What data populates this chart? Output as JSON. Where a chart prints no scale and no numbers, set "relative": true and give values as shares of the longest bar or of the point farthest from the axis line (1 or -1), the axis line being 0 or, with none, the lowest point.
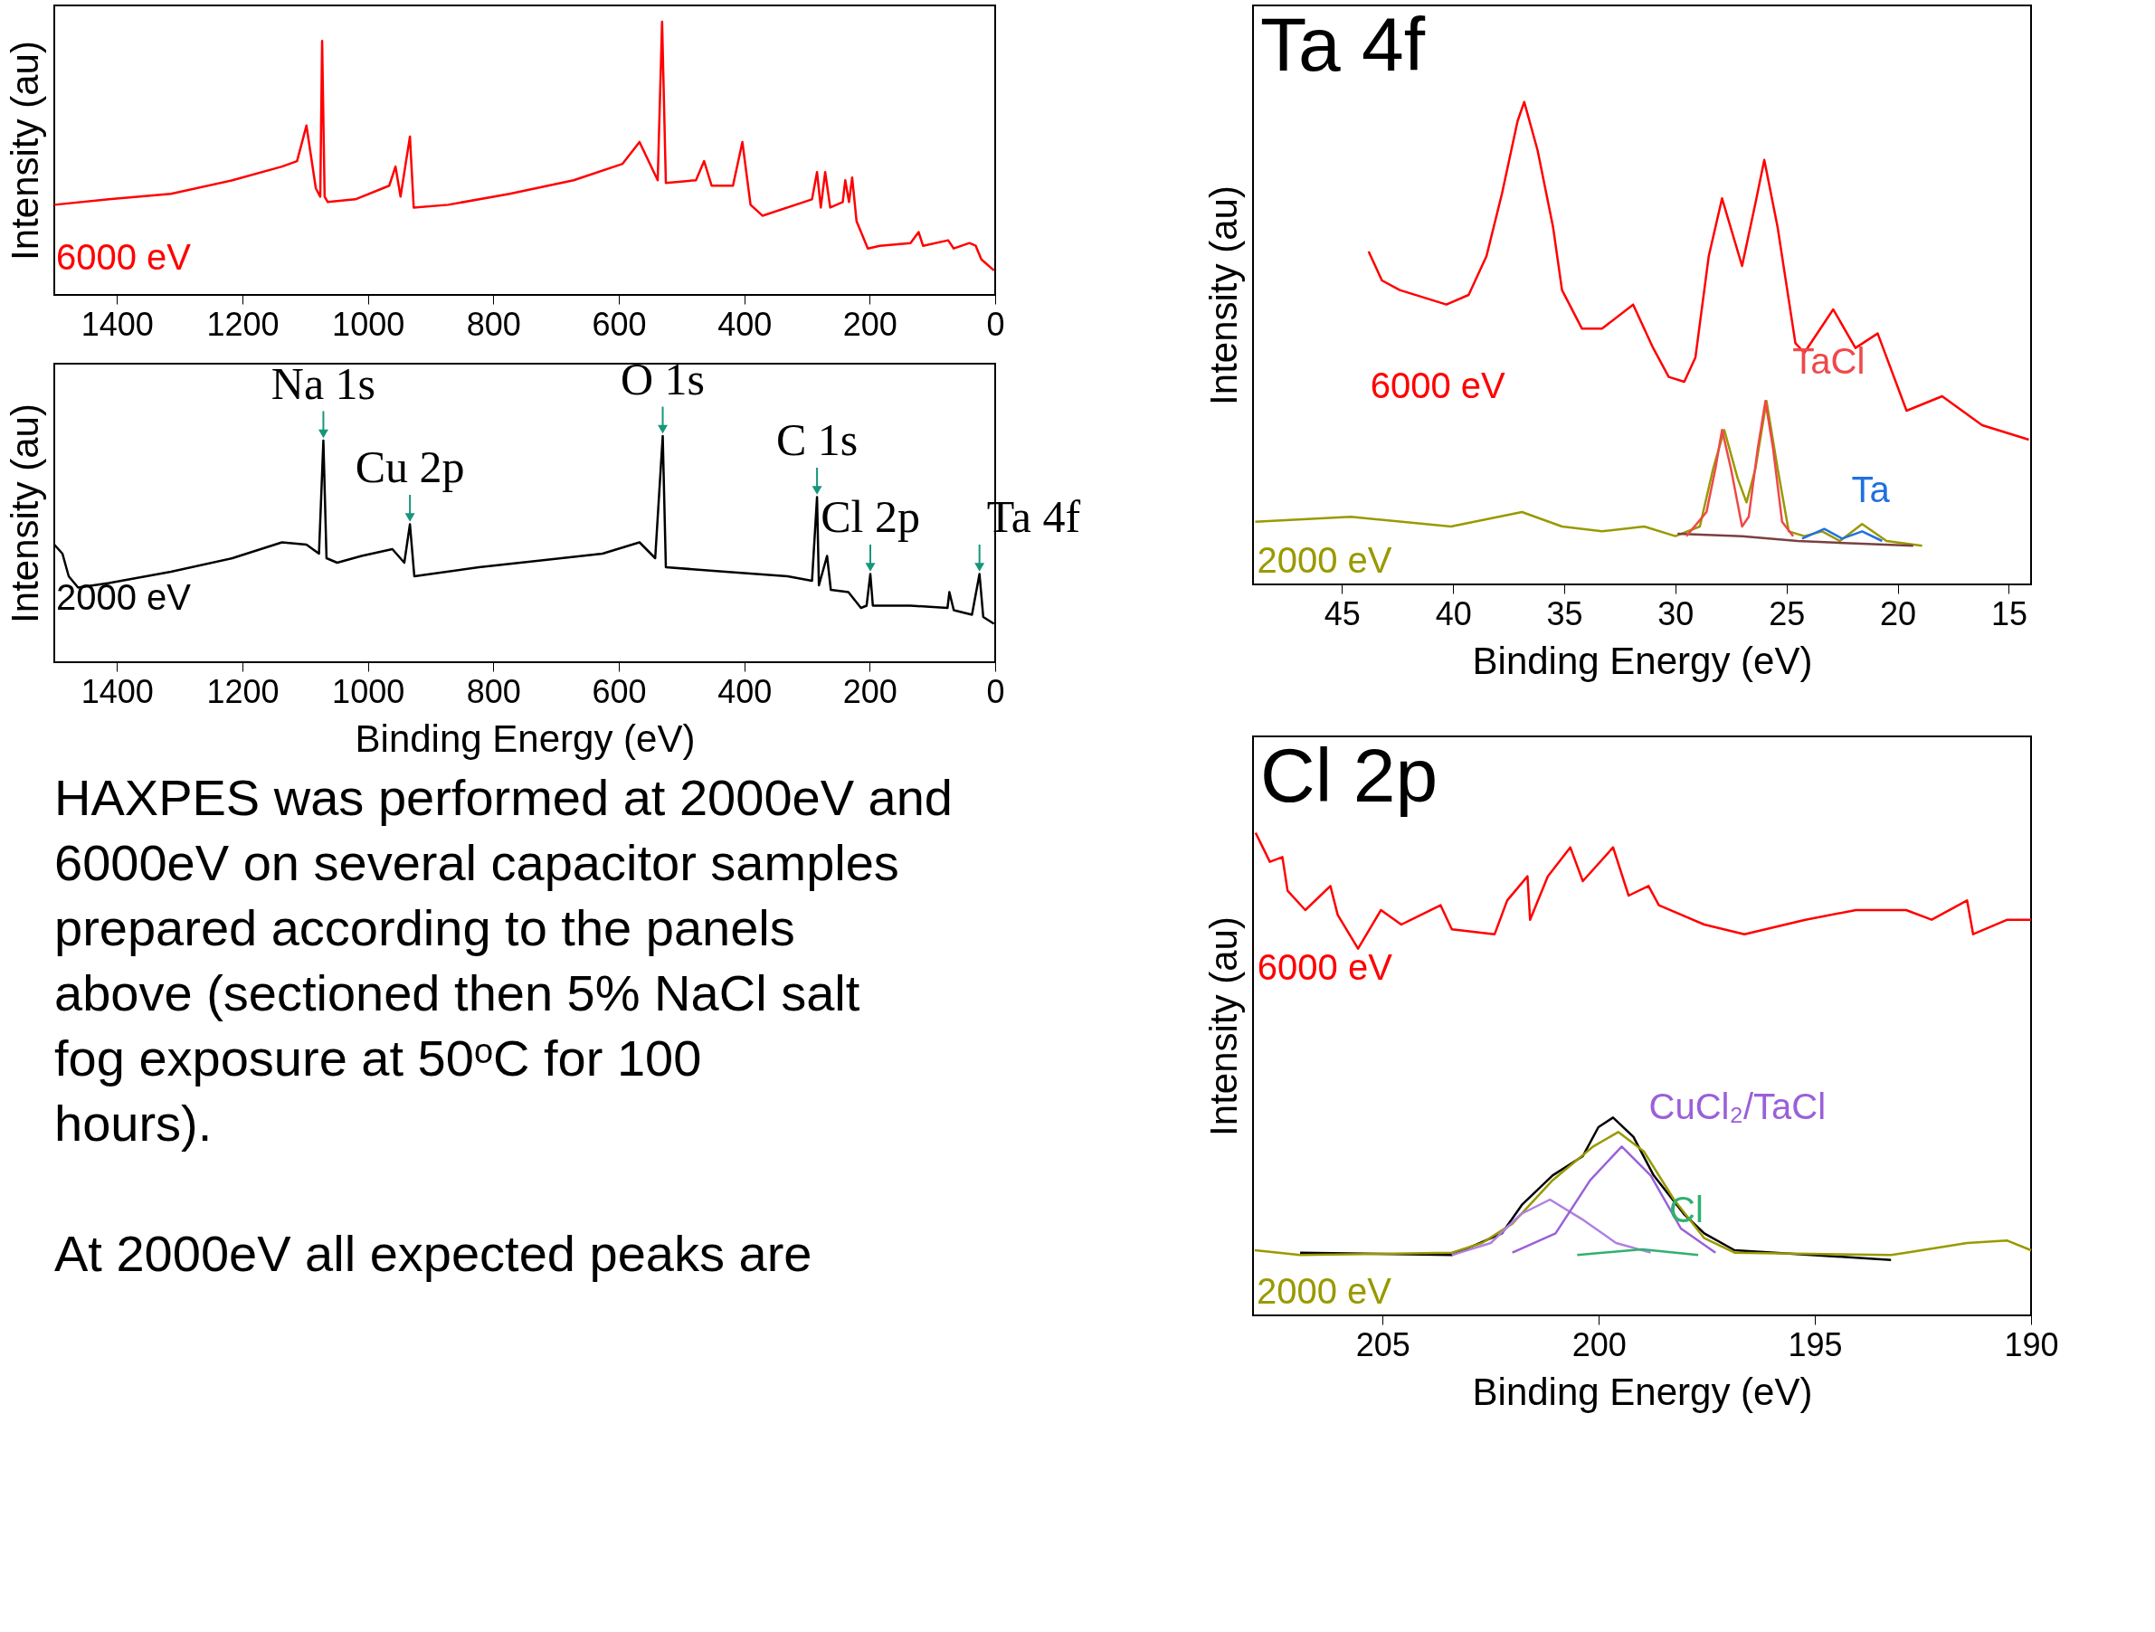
{
  "chart_data": [
    {
      "type": "line",
      "ylabel": "Intensity (au)",
      "relative": true,
      "tick_labels": "x",
      "xlim": [
        1500,
        0
      ],
      "xticks": [
        1400,
        1200,
        1000,
        800,
        600,
        400,
        200,
        0
      ],
      "series": [
        {
          "name": "6000 eV",
          "color": "#ff0000",
          "x": [
            1500,
            1413,
            1314,
            1216,
            1137,
            1113,
            1098,
            1083,
            1076,
            1073,
            1069,
            1064,
            1020,
            966,
            956,
            948,
            933,
            927,
            872,
            774,
            672,
            594,
            567,
            538,
            531,
            525,
            477,
            464,
            452,
            418,
            403,
            390,
            371,
            292,
            284,
            278,
            271,
            263,
            243,
            239,
            233,
            228,
            221,
            203,
            184,
            135,
            122,
            115,
            75,
            66,
            41,
            31,
            22,
            2
          ],
          "values": [
            0.33,
            0.35,
            0.37,
            0.42,
            0.47,
            0.49,
            0.62,
            0.39,
            0.36,
            0.93,
            0.36,
            0.34,
            0.35,
            0.4,
            0.47,
            0.36,
            0.58,
            0.32,
            0.33,
            0.37,
            0.42,
            0.48,
            0.56,
            0.42,
            1.0,
            0.41,
            0.42,
            0.49,
            0.4,
            0.4,
            0.56,
            0.33,
            0.29,
            0.35,
            0.45,
            0.32,
            0.45,
            0.32,
            0.34,
            0.42,
            0.34,
            0.43,
            0.27,
            0.17,
            0.18,
            0.19,
            0.23,
            0.18,
            0.2,
            0.17,
            0.19,
            0.18,
            0.13,
            0.09
          ]
        }
      ]
    },
    {
      "type": "line",
      "xlabel": "Binding Energy (eV)",
      "ylabel": "Intensity (au)",
      "relative": true,
      "tick_labels": "x",
      "xlim": [
        1500,
        0
      ],
      "xticks": [
        1400,
        1200,
        1000,
        800,
        600,
        400,
        200,
        0
      ],
      "series": [
        {
          "name": "2000 eV",
          "color": "#000000",
          "x": [
            1500,
            1487,
            1477,
            1462,
            1413,
            1314,
            1216,
            1137,
            1098,
            1078,
            1071,
            1066,
            1049,
            1010,
            961,
            942,
            933,
            926,
            823,
            724,
            626,
            567,
            542,
            530,
            525,
            430,
            331,
            292,
            284,
            281,
            268,
            262,
            234,
            214,
            205,
            199,
            195,
            135,
            76,
            73,
            66,
            37,
            25,
            19,
            2
          ],
          "values": [
            0.52,
            0.48,
            0.38,
            0.33,
            0.35,
            0.4,
            0.46,
            0.53,
            0.52,
            0.48,
            0.98,
            0.46,
            0.44,
            0.47,
            0.5,
            0.44,
            0.61,
            0.38,
            0.42,
            0.45,
            0.48,
            0.53,
            0.46,
            1.0,
            0.42,
            0.4,
            0.38,
            0.36,
            0.73,
            0.34,
            0.47,
            0.32,
            0.31,
            0.24,
            0.25,
            0.39,
            0.25,
            0.25,
            0.24,
            0.31,
            0.23,
            0.21,
            0.39,
            0.2,
            0.17
          ]
        }
      ],
      "annotations": [
        {
          "text": "Na 1s",
          "x": 1071,
          "y": 0.98
        },
        {
          "text": "Cu 2p",
          "x": 933,
          "y": 0.61
        },
        {
          "text": "O 1s",
          "x": 530,
          "y": 1.0
        },
        {
          "text": "C 1s",
          "x": 284,
          "y": 0.73
        },
        {
          "text": "Cl 2p",
          "x": 199,
          "y": 0.39
        },
        {
          "text": "Ta 4f",
          "x": 25,
          "y": 0.39
        }
      ]
    },
    {
      "type": "other",
      "annotations": [
        "HAXPES was performed at 2000eV and 6000eV on several capacitor samples prepared according to the panels above (sectioned then 5% NaCl salt fog exposure at 50ᵒC for 100 hours).",
        "At 2000eV all expected peaks are"
      ]
    },
    {
      "type": "line",
      "title": "Ta 4f",
      "xlabel": "Binding Energy (eV)",
      "ylabel": "Intensity (au)",
      "relative": true,
      "tick_labels": "x",
      "xlim": [
        49,
        14
      ],
      "xticks": [
        45,
        40,
        35,
        30,
        25,
        20,
        15
      ],
      "series": [
        {
          "name": "6000 eV",
          "color": "#ff0000",
          "x": [
            43.8,
            43.2,
            42.4,
            40.3,
            39.3,
            38.5,
            37.8,
            37.1,
            36.8,
            36.2,
            35.5,
            35.1,
            34.2,
            33.3,
            31.9,
            31.0,
            30.3,
            29.6,
            29.1,
            28.5,
            27.9,
            27.0,
            26.4,
            26.0,
            25.4,
            24.6,
            24.2,
            22.9,
            21.9,
            20.9,
            19.6,
            18.0,
            16.2,
            14.1
          ],
          "values": [
            0.69,
            0.63,
            0.61,
            0.58,
            0.6,
            0.68,
            0.81,
            0.96,
            1.0,
            0.9,
            0.74,
            0.61,
            0.53,
            0.53,
            0.58,
            0.49,
            0.43,
            0.42,
            0.47,
            0.68,
            0.8,
            0.66,
            0.79,
            0.88,
            0.74,
            0.5,
            0.48,
            0.57,
            0.49,
            0.52,
            0.36,
            0.39,
            0.33,
            0.3
          ]
        },
        {
          "name": "2000 eV",
          "color": "#999900",
          "x": [
            48.9,
            44.6,
            40.1,
            36.9,
            35.1,
            33.3,
            31.4,
            30.0,
            28.9,
            28.3,
            27.8,
            27.2,
            26.8,
            26.4,
            25.9,
            25.4,
            24.9,
            24.2,
            23.4,
            22.6,
            21.6,
            20.5,
            18.9
          ],
          "values": [
            0.13,
            0.14,
            0.12,
            0.15,
            0.12,
            0.11,
            0.12,
            0.1,
            0.12,
            0.24,
            0.32,
            0.22,
            0.17,
            0.24,
            0.38,
            0.24,
            0.11,
            0.1,
            0.11,
            0.09,
            0.125,
            0.09,
            0.08
          ]
        },
        {
          "color": "#7a4040",
          "x": [
            29.9,
            27.0,
            24.5,
            19.3
          ],
          "values": [
            0.105,
            0.1,
            0.09,
            0.08
          ]
        },
        {
          "name": "TaCl",
          "color": "#f04848",
          "x": [
            29.5,
            28.6,
            28.2,
            27.9,
            27.5,
            27.0,
            26.7,
            26.3,
            25.95,
            25.6,
            25.2,
            24.7
          ],
          "values": [
            0.1,
            0.15,
            0.24,
            0.32,
            0.24,
            0.12,
            0.14,
            0.28,
            0.38,
            0.28,
            0.13,
            0.1
          ]
        },
        {
          "name": "Ta",
          "color": "#2070e0",
          "x": [
            24.3,
            23.3,
            22.5,
            21.6,
            20.7
          ],
          "values": [
            0.095,
            0.115,
            0.095,
            0.11,
            0.09
          ]
        }
      ]
    },
    {
      "type": "line",
      "title": "Cl 2p",
      "xlabel": "Binding Energy (eV)",
      "ylabel": "Intensity (au)",
      "relative": true,
      "tick_labels": "x",
      "xlim": [
        208,
        190
      ],
      "xticks": [
        205,
        200,
        195,
        190
      ],
      "series": [
        {
          "name": "6000 eV",
          "color": "#ff0000",
          "x": [
            207.94,
            207.61,
            207.32,
            207.2,
            206.79,
            206.21,
            206.04,
            205.57,
            205.04,
            204.57,
            203.66,
            203.4,
            202.41,
            202.12,
            201.65,
            201.59,
            201.18,
            200.66,
            200.37,
            199.67,
            199.31,
            198.85,
            198.61,
            197.56,
            196.63,
            195.22,
            194.05,
            192.89,
            192.3,
            191.48,
            191.34,
            190.55,
            190.0
          ],
          "values": [
            1.0,
            0.94,
            0.95,
            0.88,
            0.84,
            0.89,
            0.83,
            0.76,
            0.84,
            0.81,
            0.85,
            0.8,
            0.79,
            0.86,
            0.91,
            0.82,
            0.91,
            0.97,
            0.9,
            0.97,
            0.87,
            0.89,
            0.85,
            0.81,
            0.79,
            0.82,
            0.84,
            0.84,
            0.82,
            0.86,
            0.79,
            0.82,
            0.82
          ]
        },
        {
          "color": "#000000",
          "x": [
            206.91,
            203.4,
            202.24,
            201.77,
            201.07,
            200.37,
            200.01,
            199.67,
            199.2,
            198.73,
            198.03,
            197.56,
            196.86,
            193.24
          ],
          "values": [
            0.13,
            0.125,
            0.17,
            0.23,
            0.29,
            0.33,
            0.39,
            0.41,
            0.37,
            0.29,
            0.21,
            0.17,
            0.135,
            0.115
          ]
        },
        {
          "name": "2000 eV",
          "color": "#999900",
          "x": [
            207.96,
            206.91,
            203.4,
            202.7,
            202.0,
            201.07,
            200.13,
            199.55,
            198.96,
            198.26,
            197.56,
            196.86,
            193.24,
            192.89,
            191.48,
            190.55,
            190.0
          ],
          "values": [
            0.135,
            0.125,
            0.13,
            0.15,
            0.19,
            0.28,
            0.35,
            0.38,
            0.34,
            0.24,
            0.16,
            0.13,
            0.125,
            0.13,
            0.15,
            0.155,
            0.135
          ]
        },
        {
          "color": "#b080e0",
          "x": [
            203.4,
            202.5,
            201.8,
            201.13,
            200.4,
            199.6,
            198.8
          ],
          "values": [
            0.125,
            0.15,
            0.21,
            0.24,
            0.2,
            0.15,
            0.13
          ]
        },
        {
          "name": "CuCl₂/TaCl",
          "color": "#9a60d8",
          "x": [
            202.0,
            201.0,
            200.2,
            199.47,
            198.8,
            198.1,
            197.3
          ],
          "values": [
            0.13,
            0.17,
            0.28,
            0.35,
            0.29,
            0.18,
            0.13
          ]
        },
        {
          "name": "Cl",
          "color": "#30b070",
          "x": [
            200.5,
            199.0,
            197.7
          ],
          "values": [
            0.125,
            0.137,
            0.125
          ]
        }
      ]
    }
  ]
}
